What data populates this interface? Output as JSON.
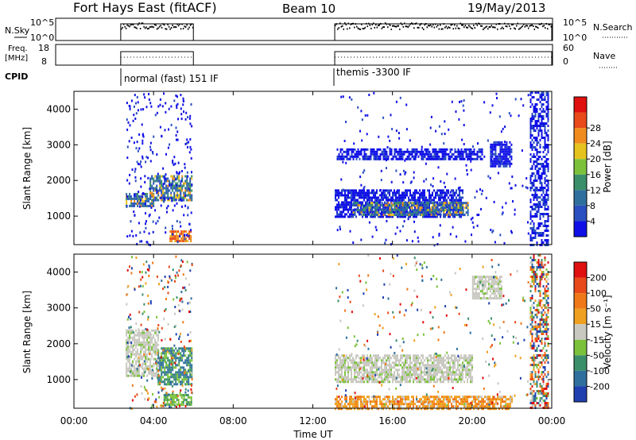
{
  "header": {
    "title": "Fort Hays East (fitACF)",
    "beam": "Beam 10",
    "date": "19/May/2013"
  },
  "noise_panel": {
    "left_label": "N.Sky",
    "right_label": "N.Search",
    "left_ticks": [
      "10^5",
      "10^0"
    ],
    "right_ticks": [
      "10^5",
      "10^0"
    ]
  },
  "freq_panel": {
    "left_label_line1": "Freq.",
    "left_label_line2": "[MHz]",
    "right_label": "Nave",
    "left_ticks": [
      "18",
      "8"
    ],
    "right_ticks": [
      "60",
      "0"
    ]
  },
  "cpid": {
    "label": "CPID",
    "segments": [
      {
        "start_hour": 2.35,
        "label": "normal (fast) 151 IF"
      },
      {
        "start_hour": 13.1,
        "label": "themis -3300 IF"
      }
    ]
  },
  "chart_data": [
    {
      "type": "heatmap",
      "name": "power",
      "ylabel": "Slant Range [km]",
      "xlabel": "",
      "xlim_hours": [
        0,
        24
      ],
      "ylim": [
        200,
        4500
      ],
      "yticks": [
        "1000",
        "2000",
        "3000",
        "4000"
      ],
      "colorbar": {
        "label": "Power [dB]",
        "ticks": [
          "4",
          "8",
          "12",
          "16",
          "20",
          "24",
          "28"
        ],
        "colors": [
          "#1010e6",
          "#2a4fc0",
          "#2f6f9e",
          "#3a8e6a",
          "#7bc23a",
          "#e6c21e",
          "#f08c1e",
          "#e84a1a",
          "#e01010"
        ]
      },
      "echo_regions": [
        {
          "hours": [
            2.6,
            4.0
          ],
          "range_km": [
            1250,
            1650
          ],
          "level": "moderate"
        },
        {
          "hours": [
            3.8,
            5.9
          ],
          "range_km": [
            1450,
            2150
          ],
          "level": "moderate"
        },
        {
          "hours": [
            4.8,
            5.9
          ],
          "range_km": [
            300,
            600
          ],
          "level": "strong"
        },
        {
          "hours": [
            13.1,
            19.5
          ],
          "range_km": [
            950,
            1750
          ],
          "level": "weak"
        },
        {
          "hours": [
            14.0,
            19.8
          ],
          "range_km": [
            1000,
            1400
          ],
          "level": "moderate"
        },
        {
          "hours": [
            13.2,
            20.5
          ],
          "range_km": [
            2600,
            2900
          ],
          "level": "weak"
        },
        {
          "hours": [
            20.9,
            22.0
          ],
          "range_km": [
            2400,
            3100
          ],
          "level": "weak"
        },
        {
          "hours": [
            22.9,
            23.8
          ],
          "range_km": [
            200,
            4500
          ],
          "level": "noise"
        }
      ]
    },
    {
      "type": "heatmap",
      "name": "velocity",
      "ylabel": "Slant Range [km]",
      "xlabel": "Time UT",
      "xlim_hours": [
        0,
        24
      ],
      "ylim": [
        200,
        4500
      ],
      "yticks": [
        "1000",
        "2000",
        "3000",
        "4000"
      ],
      "xticks": [
        "00:00",
        "04:00",
        "08:00",
        "12:00",
        "16:00",
        "20:00",
        "00:00"
      ],
      "colorbar": {
        "label": "Velocity [m s⁻¹]",
        "ticks": [
          "200",
          "100",
          "50",
          "15",
          "-15",
          "-50",
          "-100",
          "-200"
        ],
        "colors": [
          "#2040b0",
          "#2f6f9e",
          "#3a8e6a",
          "#7bc23a",
          "#c8c8c0",
          "#f0a020",
          "#f07818",
          "#e84a1a",
          "#e01010"
        ]
      },
      "echo_regions": [
        {
          "hours": [
            2.6,
            4.2
          ],
          "range_km": [
            1100,
            2400
          ],
          "level": "ground"
        },
        {
          "hours": [
            4.2,
            5.9
          ],
          "range_km": [
            900,
            1900
          ],
          "level": "positive"
        },
        {
          "hours": [
            4.5,
            5.9
          ],
          "range_km": [
            300,
            600
          ],
          "level": "positive_low"
        },
        {
          "hours": [
            13.1,
            20.0
          ],
          "range_km": [
            950,
            1700
          ],
          "level": "ground"
        },
        {
          "hours": [
            13.1,
            22.0
          ],
          "range_km": [
            200,
            550
          ],
          "level": "negative"
        },
        {
          "hours": [
            20.0,
            21.5
          ],
          "range_km": [
            3300,
            3900
          ],
          "level": "ground"
        },
        {
          "hours": [
            22.9,
            23.8
          ],
          "range_km": [
            200,
            4500
          ],
          "level": "noise"
        }
      ]
    }
  ]
}
